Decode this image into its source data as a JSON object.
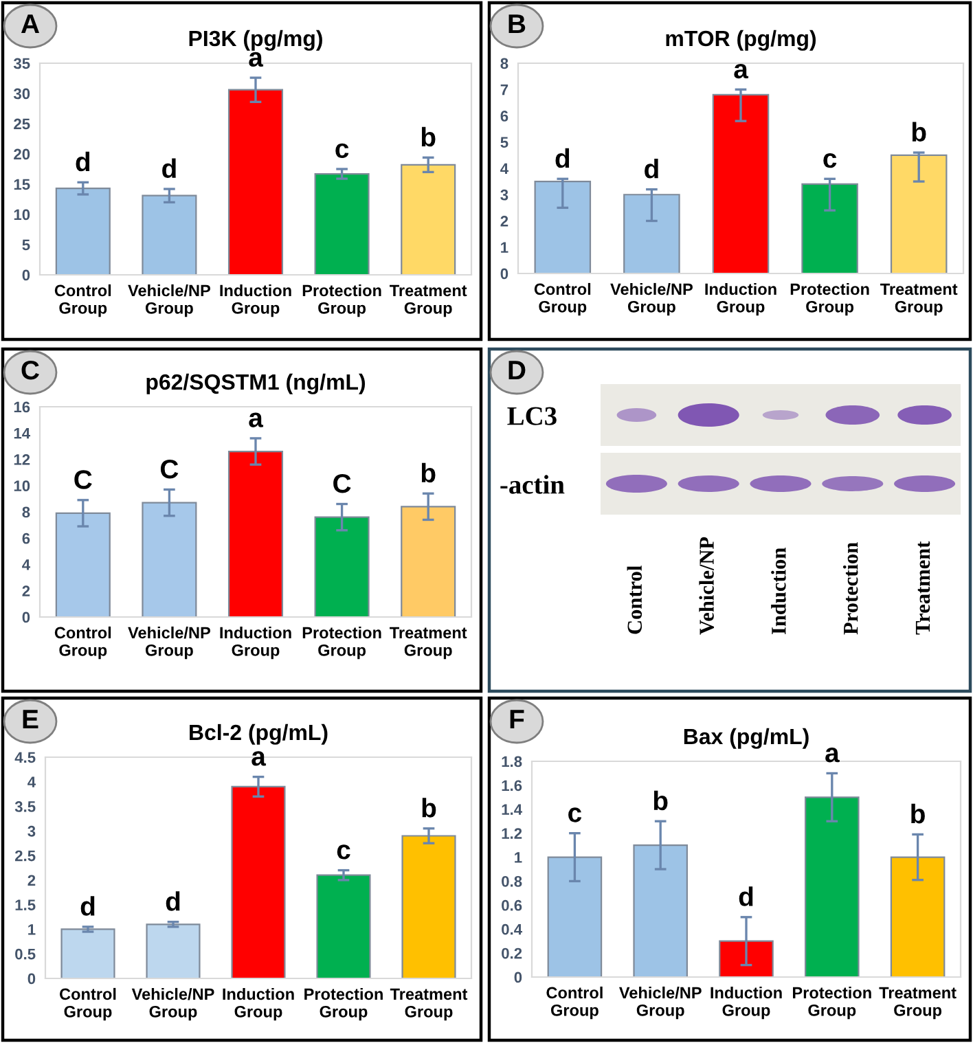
{
  "chart_data": [
    {
      "type": "bar",
      "title": "PI3K (pg/mg)",
      "categories": [
        "Control\nGroup",
        "Vehicle/NP\nGroup",
        "Induction\nGroup",
        "Protection\nGroup",
        "Treatment\nGroup"
      ],
      "values": [
        14.3,
        13.1,
        30.6,
        16.7,
        18.2
      ],
      "errors": [
        1.0,
        1.1,
        2.0,
        0.8,
        1.2
      ],
      "colors": [
        "#9dc3e6",
        "#9dc3e6",
        "#ff0000",
        "#00b050",
        "#ffd966"
      ],
      "ylim": [
        0,
        35
      ],
      "yticks": [
        0,
        5,
        10,
        15,
        20,
        25,
        30,
        35
      ],
      "annotations": [
        "A",
        {
          "text": "d",
          "x": "Control\nGroup",
          "y": 14.3
        },
        {
          "text": "d",
          "x": "Vehicle/NP\nGroup",
          "y": 13.1
        },
        {
          "text": "a",
          "x": "Induction\nGroup",
          "y": 30.6
        },
        {
          "text": "c",
          "x": "Protection\nGroup",
          "y": 16.7
        },
        {
          "text": "b",
          "x": "Treatment\nGroup",
          "y": 18.2
        }
      ]
    },
    {
      "type": "bar",
      "title": "mTOR (pg/mg)",
      "categories": [
        "Control\nGroup",
        "Vehicle/NP\nGroup",
        "Induction\nGroup",
        "Protection\nGroup",
        "Treatment\nGroup"
      ],
      "values": [
        3.5,
        3.0,
        6.8,
        3.4,
        4.5
      ],
      "errors": [
        [
          2.5,
          3.6
        ],
        [
          2.0,
          3.2
        ],
        [
          5.8,
          7.0
        ],
        [
          2.4,
          3.6
        ],
        [
          3.5,
          4.6
        ]
      ],
      "colors": [
        "#9dc3e6",
        "#9dc3e6",
        "#ff0000",
        "#00b050",
        "#ffd966"
      ],
      "ylim": [
        0,
        8
      ],
      "yticks": [
        0,
        1,
        2,
        3,
        4,
        5,
        6,
        7,
        8
      ],
      "annotations": [
        "B",
        {
          "text": "d",
          "x": "Control\nGroup",
          "y": 3.5
        },
        {
          "text": "d",
          "x": "Vehicle/NP\nGroup",
          "y": 3.0
        },
        {
          "text": "a",
          "x": "Induction\nGroup",
          "y": 6.8
        },
        {
          "text": "c",
          "x": "Protection\nGroup",
          "y": 3.4
        },
        {
          "text": "b",
          "x": "Treatment\nGroup",
          "y": 4.5
        }
      ]
    },
    {
      "type": "bar",
      "title": "p62/SQSTM1 (ng/mL)",
      "categories": [
        "Control\nGroup",
        "Vehicle/NP\nGroup",
        "Induction\nGroup",
        "Protection\nGroup",
        "Treatment\nGroup"
      ],
      "values": [
        7.9,
        8.7,
        12.6,
        7.6,
        8.4
      ],
      "errors": [
        1.0,
        1.0,
        1.0,
        1.0,
        1.0
      ],
      "colors": [
        "#a6c8ea",
        "#a6c8ea",
        "#ff0000",
        "#00b050",
        "#ffca65"
      ],
      "ylim": [
        0,
        16
      ],
      "yticks": [
        0,
        2,
        4,
        6,
        8,
        10,
        12,
        14,
        16
      ],
      "annotations": [
        "C",
        {
          "text": "C",
          "x": "Control\nGroup",
          "y": 7.9
        },
        {
          "text": "C",
          "x": "Vehicle/NP\nGroup",
          "y": 8.7
        },
        {
          "text": "a",
          "x": "Induction\nGroup",
          "y": 12.6
        },
        {
          "text": "C",
          "x": "Protection\nGroup",
          "y": 7.6
        },
        {
          "text": "b",
          "x": "Treatment\nGroup",
          "y": 8.4
        }
      ]
    },
    {
      "type": "other",
      "categories": [
        "Control",
        "Vehicle/NP",
        "Induction",
        "Protection",
        "Treatment"
      ],
      "y_categories": [
        "LC3",
        "-actin"
      ],
      "annotations": [
        "D"
      ]
    },
    {
      "type": "bar",
      "title": "Bcl-2 (pg/mL)",
      "categories": [
        "Control\nGroup",
        "Vehicle/NP\nGroup",
        "Induction\nGroup",
        "Protection\nGroup",
        "Treatment\nGroup"
      ],
      "values": [
        1.0,
        1.1,
        3.9,
        2.1,
        2.9
      ],
      "errors": [
        0.05,
        0.05,
        0.2,
        0.1,
        0.15
      ],
      "colors": [
        "#bdd7ee",
        "#bdd7ee",
        "#ff0000",
        "#00b050",
        "#ffc000"
      ],
      "ylim": [
        0,
        4.5
      ],
      "yticks": [
        0,
        0.5,
        1,
        1.5,
        2,
        2.5,
        3,
        3.5,
        4,
        4.5
      ],
      "annotations": [
        "E",
        {
          "text": "d",
          "x": "Control\nGroup",
          "y": 1.0
        },
        {
          "text": "d",
          "x": "Vehicle/NP\nGroup",
          "y": 1.1
        },
        {
          "text": "a",
          "x": "Induction\nGroup",
          "y": 3.9
        },
        {
          "text": "c",
          "x": "Protection\nGroup",
          "y": 2.1
        },
        {
          "text": "b",
          "x": "Treatment\nGroup",
          "y": 2.9
        }
      ]
    },
    {
      "type": "bar",
      "title": "Bax (pg/mL)",
      "categories": [
        "Control\nGroup",
        "Vehicle/NP\nGroup",
        "Induction\nGroup",
        "Protection\nGroup",
        "Treatment\nGroup"
      ],
      "values": [
        1.0,
        1.1,
        0.3,
        1.5,
        1.0
      ],
      "errors": [
        0.2,
        0.2,
        0.2,
        0.2,
        0.19
      ],
      "colors": [
        "#9dc3e6",
        "#9dc3e6",
        "#ff0000",
        "#00b050",
        "#ffc000"
      ],
      "ylim": [
        0,
        1.8
      ],
      "yticks": [
        0,
        0.2,
        0.4,
        0.6,
        0.8,
        1,
        1.2,
        1.4,
        1.6,
        1.8
      ],
      "annotations": [
        "F",
        {
          "text": "c",
          "x": "Control\nGroup",
          "y": 1.0
        },
        {
          "text": "b",
          "x": "Vehicle/NP\nGroup",
          "y": 1.1
        },
        {
          "text": "d",
          "x": "Induction\nGroup",
          "y": 0.3
        },
        {
          "text": "a",
          "x": "Protection\nGroup",
          "y": 1.5
        },
        {
          "text": "b",
          "x": "Treatment\nGroup",
          "y": 1.0
        }
      ]
    }
  ]
}
